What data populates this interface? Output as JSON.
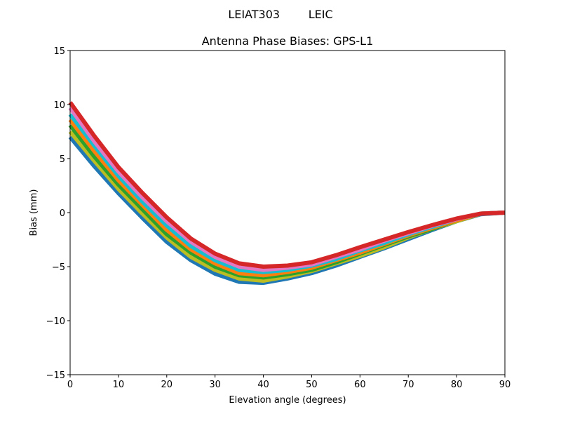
{
  "chart_data": {
    "type": "line",
    "suptitle": "LEIAT303        LEIC",
    "title": "Antenna Phase Biases: GPS-L1",
    "xlabel": "Elevation angle (degrees)",
    "ylabel": "Bias (mm)",
    "xlim": [
      0,
      90
    ],
    "ylim": [
      -15,
      15
    ],
    "xticks": [
      0,
      10,
      20,
      30,
      40,
      50,
      60,
      70,
      80,
      90
    ],
    "yticks": [
      -15,
      -10,
      -5,
      0,
      5,
      10,
      15
    ],
    "ytick_labels": [
      "−15",
      "−10",
      "−5",
      "0",
      "5",
      "10",
      "15"
    ],
    "xtick_labels": [
      "0",
      "10",
      "20",
      "30",
      "40",
      "50",
      "60",
      "70",
      "80",
      "90"
    ],
    "grid": false,
    "x": [
      0,
      5,
      10,
      15,
      20,
      25,
      30,
      35,
      40,
      45,
      50,
      55,
      60,
      65,
      70,
      75,
      80,
      85,
      90
    ],
    "series": [
      {
        "name": "s0",
        "color": "#1f77b4",
        "values": [
          7.0,
          4.3,
          1.8,
          -0.5,
          -2.7,
          -4.4,
          -5.65,
          -6.4,
          -6.5,
          -6.1,
          -5.6,
          -4.9,
          -4.1,
          -3.3,
          -2.45,
          -1.6,
          -0.8,
          -0.15,
          0
        ]
      },
      {
        "name": "s1",
        "color": "#bcbd22",
        "values": [
          7.5,
          4.8,
          2.2,
          -0.1,
          -2.3,
          -4.1,
          -5.3,
          -6.1,
          -6.3,
          -5.9,
          -5.4,
          -4.7,
          -4.0,
          -3.2,
          -2.3,
          -1.5,
          -0.8,
          -0.1,
          0
        ]
      },
      {
        "name": "s2",
        "color": "#2ca02c",
        "values": [
          8.1,
          5.2,
          2.6,
          0.3,
          -2.0,
          -3.7,
          -5.0,
          -5.8,
          -6.0,
          -5.7,
          -5.3,
          -4.6,
          -3.8,
          -3.0,
          -2.2,
          -1.5,
          -0.7,
          -0.1,
          0
        ]
      },
      {
        "name": "s3",
        "color": "#ff7f0e",
        "values": [
          8.6,
          5.7,
          3.0,
          0.7,
          -1.6,
          -3.4,
          -4.7,
          -5.6,
          -5.8,
          -5.5,
          -5.1,
          -4.4,
          -3.7,
          -2.9,
          -2.1,
          -1.4,
          -0.7,
          -0.1,
          0
        ]
      },
      {
        "name": "s4",
        "color": "#17becf",
        "values": [
          9.1,
          6.2,
          3.4,
          1.0,
          -1.2,
          -3.1,
          -4.4,
          -5.3,
          -5.5,
          -5.3,
          -4.9,
          -4.3,
          -3.5,
          -2.8,
          -2.0,
          -1.3,
          -0.6,
          -0.1,
          0
        ]
      },
      {
        "name": "s5",
        "color": "#e377c2",
        "values": [
          9.7,
          6.6,
          3.8,
          1.4,
          -0.8,
          -2.7,
          -4.1,
          -5.0,
          -5.3,
          -5.1,
          -4.8,
          -4.1,
          -3.4,
          -2.6,
          -1.9,
          -1.2,
          -0.6,
          -0.1,
          0
        ]
      },
      {
        "name": "s6",
        "color": "#d62728",
        "values": [
          10.2,
          7.1,
          4.2,
          1.8,
          -0.45,
          -2.4,
          -3.8,
          -4.7,
          -5.0,
          -4.9,
          -4.6,
          -3.95,
          -3.2,
          -2.5,
          -1.8,
          -1.15,
          -0.55,
          -0.1,
          0
        ]
      }
    ]
  }
}
